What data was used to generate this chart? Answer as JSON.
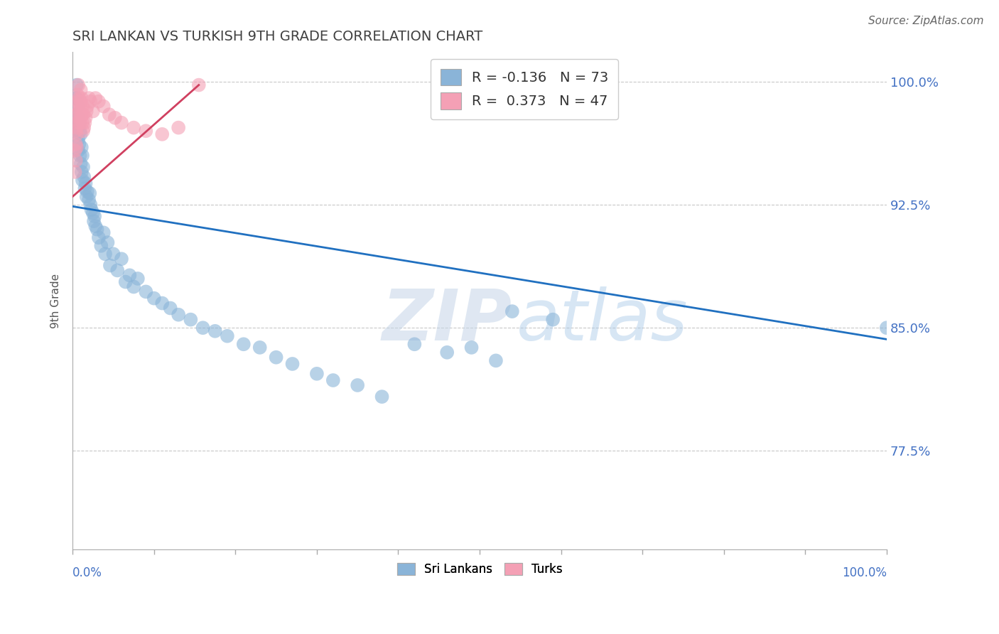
{
  "title": "SRI LANKAN VS TURKISH 9TH GRADE CORRELATION CHART",
  "source": "Source: ZipAtlas.com",
  "ylabel": "9th Grade",
  "xlim": [
    0.0,
    1.0
  ],
  "ylim": [
    0.715,
    1.018
  ],
  "yticks": [
    0.775,
    0.85,
    0.925,
    1.0
  ],
  "ytick_labels": [
    "77.5%",
    "85.0%",
    "92.5%",
    "100.0%"
  ],
  "r_blue": "-0.136",
  "n_blue": "73",
  "r_pink": " 0.373",
  "n_pink": "47",
  "blue_line_x": [
    0.0,
    1.0
  ],
  "blue_line_y": [
    0.924,
    0.843
  ],
  "pink_line_x": [
    0.0,
    0.155
  ],
  "pink_line_y": [
    0.93,
    0.998
  ],
  "blue_scatter_color": "#8ab4d8",
  "pink_scatter_color": "#f4a0b5",
  "blue_line_color": "#2070c0",
  "pink_line_color": "#d04060",
  "background_color": "#ffffff",
  "grid_color": "#c8c8c8",
  "title_color": "#404040",
  "tick_label_color": "#4472c4",
  "sri_x": [
    0.003,
    0.004,
    0.004,
    0.005,
    0.005,
    0.005,
    0.006,
    0.006,
    0.007,
    0.007,
    0.007,
    0.008,
    0.008,
    0.009,
    0.009,
    0.01,
    0.01,
    0.011,
    0.011,
    0.012,
    0.012,
    0.013,
    0.014,
    0.015,
    0.016,
    0.017,
    0.018,
    0.02,
    0.021,
    0.022,
    0.023,
    0.025,
    0.026,
    0.027,
    0.028,
    0.03,
    0.032,
    0.035,
    0.038,
    0.04,
    0.043,
    0.046,
    0.05,
    0.055,
    0.06,
    0.065,
    0.07,
    0.075,
    0.08,
    0.09,
    0.1,
    0.11,
    0.12,
    0.13,
    0.145,
    0.16,
    0.175,
    0.19,
    0.21,
    0.23,
    0.25,
    0.27,
    0.3,
    0.32,
    0.35,
    0.38,
    0.42,
    0.46,
    0.49,
    0.52,
    0.54,
    0.59,
    1.0
  ],
  "sri_y": [
    0.99,
    0.98,
    0.97,
    0.998,
    0.99,
    0.975,
    0.985,
    0.972,
    0.978,
    0.965,
    0.958,
    0.975,
    0.962,
    0.97,
    0.955,
    0.968,
    0.95,
    0.96,
    0.945,
    0.955,
    0.94,
    0.948,
    0.942,
    0.935,
    0.938,
    0.93,
    0.933,
    0.928,
    0.932,
    0.925,
    0.922,
    0.92,
    0.915,
    0.918,
    0.912,
    0.91,
    0.905,
    0.9,
    0.908,
    0.895,
    0.902,
    0.888,
    0.895,
    0.885,
    0.892,
    0.878,
    0.882,
    0.875,
    0.88,
    0.872,
    0.868,
    0.865,
    0.862,
    0.858,
    0.855,
    0.85,
    0.848,
    0.845,
    0.84,
    0.838,
    0.832,
    0.828,
    0.822,
    0.818,
    0.815,
    0.808,
    0.84,
    0.835,
    0.838,
    0.83,
    0.86,
    0.855,
    0.85
  ],
  "turk_x": [
    0.003,
    0.003,
    0.004,
    0.004,
    0.004,
    0.005,
    0.005,
    0.005,
    0.005,
    0.006,
    0.006,
    0.006,
    0.007,
    0.007,
    0.007,
    0.008,
    0.008,
    0.009,
    0.009,
    0.01,
    0.01,
    0.01,
    0.011,
    0.011,
    0.012,
    0.012,
    0.013,
    0.013,
    0.014,
    0.015,
    0.016,
    0.017,
    0.018,
    0.02,
    0.022,
    0.025,
    0.028,
    0.032,
    0.038,
    0.045,
    0.052,
    0.06,
    0.075,
    0.09,
    0.11,
    0.13,
    0.155
  ],
  "turk_y": [
    0.945,
    0.958,
    0.952,
    0.962,
    0.97,
    0.96,
    0.972,
    0.98,
    0.968,
    0.975,
    0.985,
    0.992,
    0.978,
    0.988,
    0.998,
    0.982,
    0.99,
    0.975,
    0.985,
    0.978,
    0.988,
    0.995,
    0.98,
    0.99,
    0.975,
    0.985,
    0.97,
    0.98,
    0.972,
    0.975,
    0.978,
    0.982,
    0.985,
    0.99,
    0.988,
    0.982,
    0.99,
    0.988,
    0.985,
    0.98,
    0.978,
    0.975,
    0.972,
    0.97,
    0.968,
    0.972,
    0.998
  ],
  "watermark_zip": "ZIP",
  "watermark_atlas": "atlas"
}
